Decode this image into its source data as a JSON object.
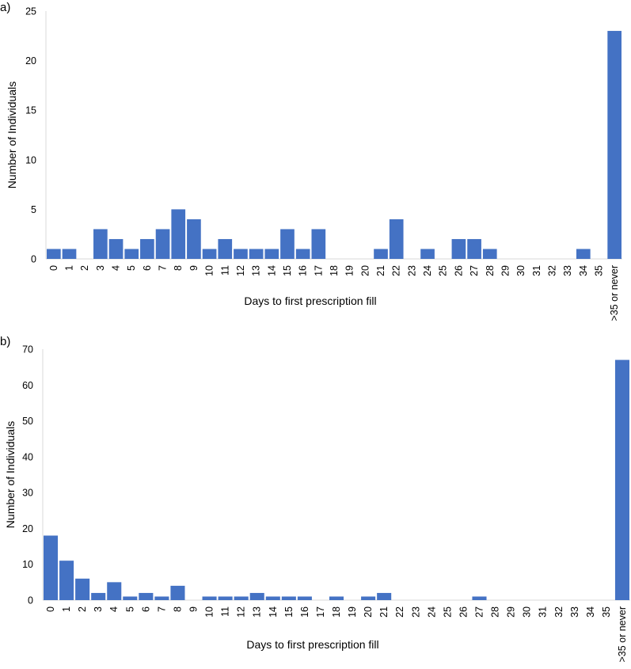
{
  "chart_data": [
    {
      "panel": "a)",
      "type": "bar",
      "title": "",
      "xlabel": "Days to first prescription fill",
      "ylabel": "Number of Individuals",
      "ylim": [
        0,
        25
      ],
      "yticks": [
        0,
        5,
        10,
        15,
        20,
        25
      ],
      "grid": false,
      "bar_color": "#4472C4",
      "categories": [
        "0",
        "1",
        "2",
        "3",
        "4",
        "5",
        "6",
        "7",
        "8",
        "9",
        "10",
        "11",
        "12",
        "13",
        "14",
        "15",
        "16",
        "17",
        "18",
        "19",
        "20",
        "21",
        "22",
        "23",
        "24",
        "25",
        "26",
        "27",
        "28",
        "29",
        "30",
        "31",
        "32",
        "33",
        "34",
        "35",
        ">35 or never"
      ],
      "values": [
        1,
        1,
        0,
        3,
        2,
        1,
        2,
        3,
        5,
        4,
        1,
        2,
        1,
        1,
        1,
        3,
        1,
        3,
        0,
        0,
        0,
        1,
        4,
        0,
        1,
        0,
        2,
        2,
        1,
        0,
        0,
        0,
        0,
        0,
        1,
        0,
        23
      ]
    },
    {
      "panel": "b)",
      "type": "bar",
      "title": "",
      "xlabel": "Days to first prescription fill",
      "ylabel": "Number of Individuals",
      "ylim": [
        0,
        70
      ],
      "yticks": [
        0,
        10,
        20,
        30,
        40,
        50,
        60,
        70
      ],
      "grid": false,
      "bar_color": "#4472C4",
      "categories": [
        "0",
        "1",
        "2",
        "3",
        "4",
        "5",
        "6",
        "7",
        "8",
        "9",
        "10",
        "11",
        "12",
        "13",
        "14",
        "15",
        "16",
        "17",
        "18",
        "19",
        "20",
        "21",
        "22",
        "23",
        "24",
        "25",
        "26",
        "27",
        "28",
        "29",
        "30",
        "31",
        "32",
        "33",
        "34",
        "35",
        ">35 or never"
      ],
      "values": [
        18,
        11,
        6,
        2,
        5,
        1,
        2,
        1,
        4,
        0,
        1,
        1,
        1,
        2,
        1,
        1,
        1,
        0,
        1,
        0,
        1,
        2,
        0,
        0,
        0,
        0,
        0,
        1,
        0,
        0,
        0,
        0,
        0,
        0,
        0,
        0,
        67
      ]
    }
  ]
}
